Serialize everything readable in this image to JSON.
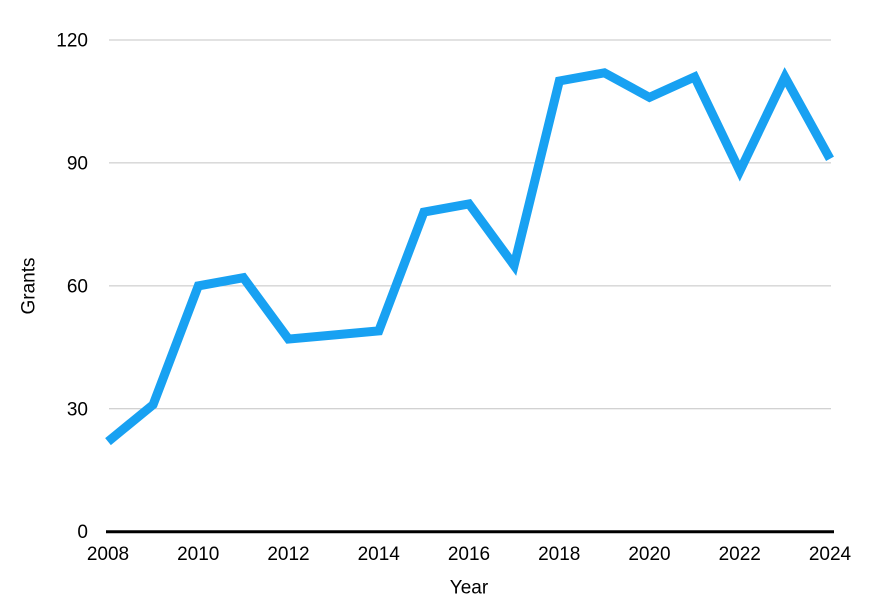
{
  "chart_data": {
    "type": "line",
    "x": [
      2008,
      2009,
      2010,
      2011,
      2012,
      2013,
      2014,
      2015,
      2016,
      2017,
      2018,
      2019,
      2020,
      2021,
      2022,
      2023,
      2024
    ],
    "series": [
      {
        "name": "Grants",
        "values": [
          22,
          31,
          60,
          62,
          47,
          48,
          49,
          78,
          80,
          65,
          110,
          112,
          106,
          111,
          88,
          111,
          91
        ]
      }
    ],
    "title": "",
    "xlabel": "Year",
    "ylabel": "Grants",
    "x_tick_labels": [
      "2008",
      "2010",
      "2012",
      "2014",
      "2016",
      "2018",
      "2020",
      "2022",
      "2024"
    ],
    "x_ticks": [
      2008,
      2010,
      2012,
      2014,
      2016,
      2018,
      2020,
      2022,
      2024
    ],
    "y_tick_labels": [
      "0",
      "30",
      "60",
      "90",
      "120"
    ],
    "y_ticks": [
      0,
      30,
      60,
      90,
      120
    ],
    "xlim": [
      2008,
      2024
    ],
    "ylim": [
      0,
      120
    ],
    "grid": "horizontal-only",
    "legend_position": "none",
    "colors": {
      "line": "#18A1F2",
      "gridline": "#c4c4c4",
      "axis": "#000000",
      "text": "#000000",
      "background": "#ffffff"
    },
    "line_width": 9
  }
}
